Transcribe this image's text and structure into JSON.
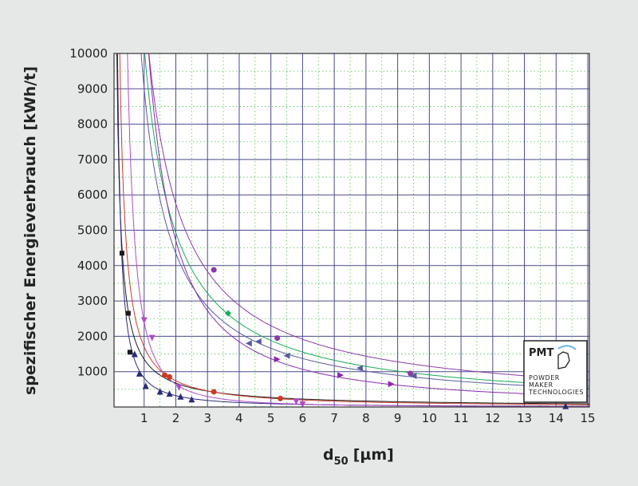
{
  "chart_data": {
    "type": "scatter",
    "title": "",
    "xlabel_main": "d",
    "xlabel_sub": "50",
    "xlabel_unit": "[µm]",
    "ylabel": "spezifischer Energieverbrauch [kWh/t]",
    "xlim": [
      0.05,
      15.05
    ],
    "ylim": [
      0,
      10000
    ],
    "x_ticks": [
      1,
      2,
      3,
      4,
      5,
      6,
      7,
      8,
      9,
      10,
      11,
      12,
      13,
      14,
      15
    ],
    "y_ticks": [
      1000,
      2000,
      3000,
      4000,
      5000,
      6000,
      7000,
      8000,
      9000,
      10000
    ],
    "grid": {
      "major": true,
      "minor_dotted": true
    },
    "series": [
      {
        "color": "#1a1a1a",
        "marker": "square",
        "points": [
          [
            0.3,
            4350
          ],
          [
            0.5,
            2650
          ],
          [
            0.55,
            1550
          ]
        ],
        "fit_k": 1350,
        "fit_p": 1.0
      },
      {
        "color": "#2a2a7a",
        "marker": "triangle-up",
        "points": [
          [
            0.7,
            1500
          ],
          [
            0.85,
            950
          ],
          [
            1.05,
            600
          ],
          [
            1.5,
            440
          ],
          [
            1.8,
            380
          ],
          [
            2.15,
            300
          ],
          [
            2.5,
            220
          ],
          [
            14.3,
            30
          ]
        ],
        "fit_k": 820,
        "fit_p": 1.35
      },
      {
        "color": "#cc3b2a",
        "marker": "circle",
        "points": [
          [
            1.65,
            900
          ],
          [
            1.8,
            850
          ],
          [
            3.2,
            430
          ],
          [
            5.3,
            240
          ]
        ],
        "fit_k": 1700,
        "fit_p": 1.2
      },
      {
        "color": "#b04cc8",
        "marker": "triangle-down",
        "points": [
          [
            1.0,
            2450
          ],
          [
            1.25,
            1950
          ],
          [
            2.1,
            550
          ],
          [
            5.8,
            150
          ],
          [
            6.0,
            70
          ]
        ],
        "fit_k": 2400,
        "fit_p": 1.9
      },
      {
        "color": "#8b3aa8",
        "marker": "circle",
        "points": [
          [
            3.2,
            3880
          ],
          [
            5.2,
            1950
          ],
          [
            9.4,
            950
          ]
        ],
        "fit_k": 11500,
        "fit_p": 1.0
      },
      {
        "color": "#1aaa55",
        "marker": "diamond",
        "points": [
          [
            3.65,
            2650
          ]
        ],
        "fit_k": 10200,
        "fit_p": 1.05
      },
      {
        "color": "#5a5aa0",
        "marker": "triangle-left",
        "points": [
          [
            4.3,
            1800
          ],
          [
            4.6,
            1850
          ],
          [
            5.5,
            1450
          ],
          [
            7.8,
            1100
          ],
          [
            9.5,
            880
          ]
        ],
        "fit_k": 9000,
        "fit_p": 1.05
      },
      {
        "color": "#8a2ab0",
        "marker": "triangle-right",
        "points": [
          [
            5.2,
            1350
          ],
          [
            7.2,
            900
          ],
          [
            8.8,
            650
          ]
        ],
        "fit_k": 12000,
        "fit_p": 1.35
      }
    ]
  },
  "logo": {
    "name": "PMT",
    "line1": "POWDER",
    "line2": "MAKER",
    "line3": "TECHNOLOGIES"
  }
}
